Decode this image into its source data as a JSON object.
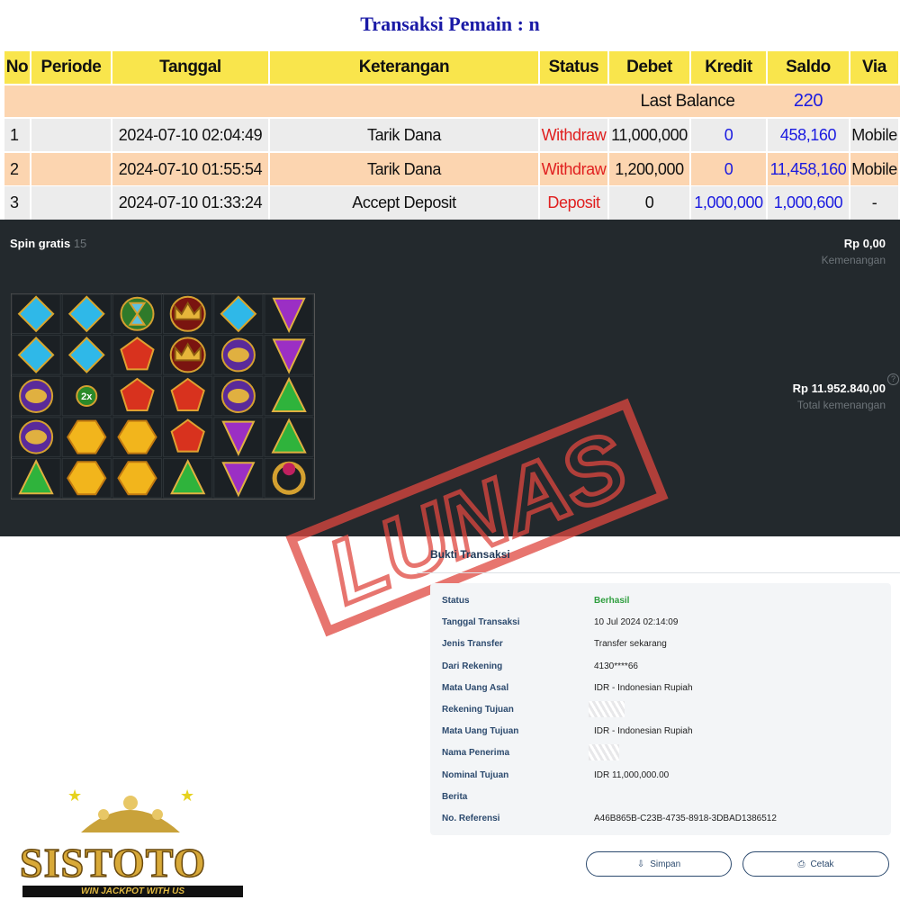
{
  "header": {
    "title": "Transaksi Pemain : n"
  },
  "table": {
    "columns": [
      "No",
      "Periode",
      "Tanggal",
      "Keterangan",
      "Status",
      "Debet",
      "Kredit",
      "Saldo",
      "Via"
    ],
    "last_balance": {
      "label": "Last Balance",
      "value": "220"
    },
    "rows": [
      [
        "1",
        null,
        "2024-07-10 02:04:49",
        "Tarik Dana",
        "Withdraw",
        "11,000,000",
        "0",
        "458,160",
        "Mobile"
      ],
      [
        "2",
        null,
        "2024-07-10 01:55:54",
        "Tarik Dana",
        "Withdraw",
        "1,200,000",
        "0",
        "11,458,160",
        "Mobile"
      ],
      [
        "3",
        null,
        "2024-07-10 01:33:24",
        "Accept Deposit",
        "Deposit",
        "0",
        "1,000,000",
        "1,000,600",
        "-"
      ]
    ]
  },
  "game": {
    "spin_label": "Spin gratis",
    "spin_count": "15",
    "win": "Rp 0,00",
    "win_label": "Kemenangan",
    "total": "Rp 11.952.840,00",
    "total_label": "Total kemenangan",
    "multiplier": "2x",
    "help": "?"
  },
  "stamp": "LUNAS",
  "receipt": {
    "title": "Bukti Transaksi",
    "fields": [
      {
        "label": "Status",
        "value": "Berhasil"
      },
      {
        "label": "Tanggal Transaksi",
        "value": "10 Jul 2024 02:14:09"
      },
      {
        "label": "Jenis Transfer",
        "value": "Transfer sekarang"
      },
      {
        "label": "Dari Rekening",
        "value": "4130****66"
      },
      {
        "label": "Mata Uang Asal",
        "value": "IDR - Indonesian Rupiah"
      },
      {
        "label": "Rekening Tujuan",
        "value": null
      },
      {
        "label": "Mata Uang Tujuan",
        "value": "IDR - Indonesian Rupiah"
      },
      {
        "label": "Nama Penerima",
        "value": null
      },
      {
        "label": "Nominal Tujuan",
        "value": "IDR 11,000,000.00"
      },
      {
        "label": "Berita",
        "value": null
      },
      {
        "label": "No. Referensi",
        "value": "A46B865B-C23B-4735-8918-3DBAD1386512"
      }
    ],
    "buttons": [
      "Simpan",
      "Cetak"
    ]
  },
  "logo": {
    "name": "SISTOTO",
    "tagline": "WIN JACKPOT WITH US"
  }
}
